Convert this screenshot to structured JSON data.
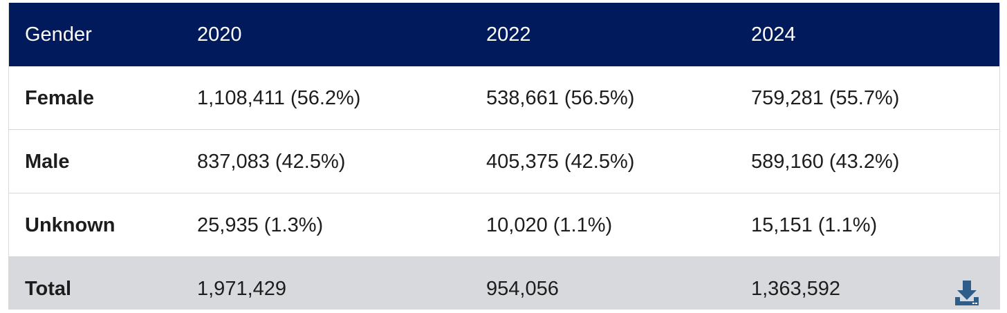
{
  "table": {
    "headers": [
      "Gender",
      "2020",
      "2022",
      "2024"
    ],
    "rows": [
      {
        "label": "Female",
        "values": [
          "1,108,411 (56.2%)",
          "538,661 (56.5%)",
          "759,281 (55.7%)"
        ]
      },
      {
        "label": "Male",
        "values": [
          "837,083 (42.5%)",
          "405,375 (42.5%)",
          "589,160 (43.2%)"
        ]
      },
      {
        "label": "Unknown",
        "values": [
          "25,935 (1.3%)",
          "10,020 (1.1%)",
          "15,151 (1.1%)"
        ]
      }
    ],
    "total": {
      "label": "Total",
      "values": [
        "1,971,429",
        "954,056",
        "1,363,592"
      ]
    }
  },
  "icons": {
    "download": "download-icon"
  },
  "colors": {
    "header_bg": "#001a5c",
    "total_bg": "#d8d9dc",
    "icon": "#2f5d8a"
  }
}
